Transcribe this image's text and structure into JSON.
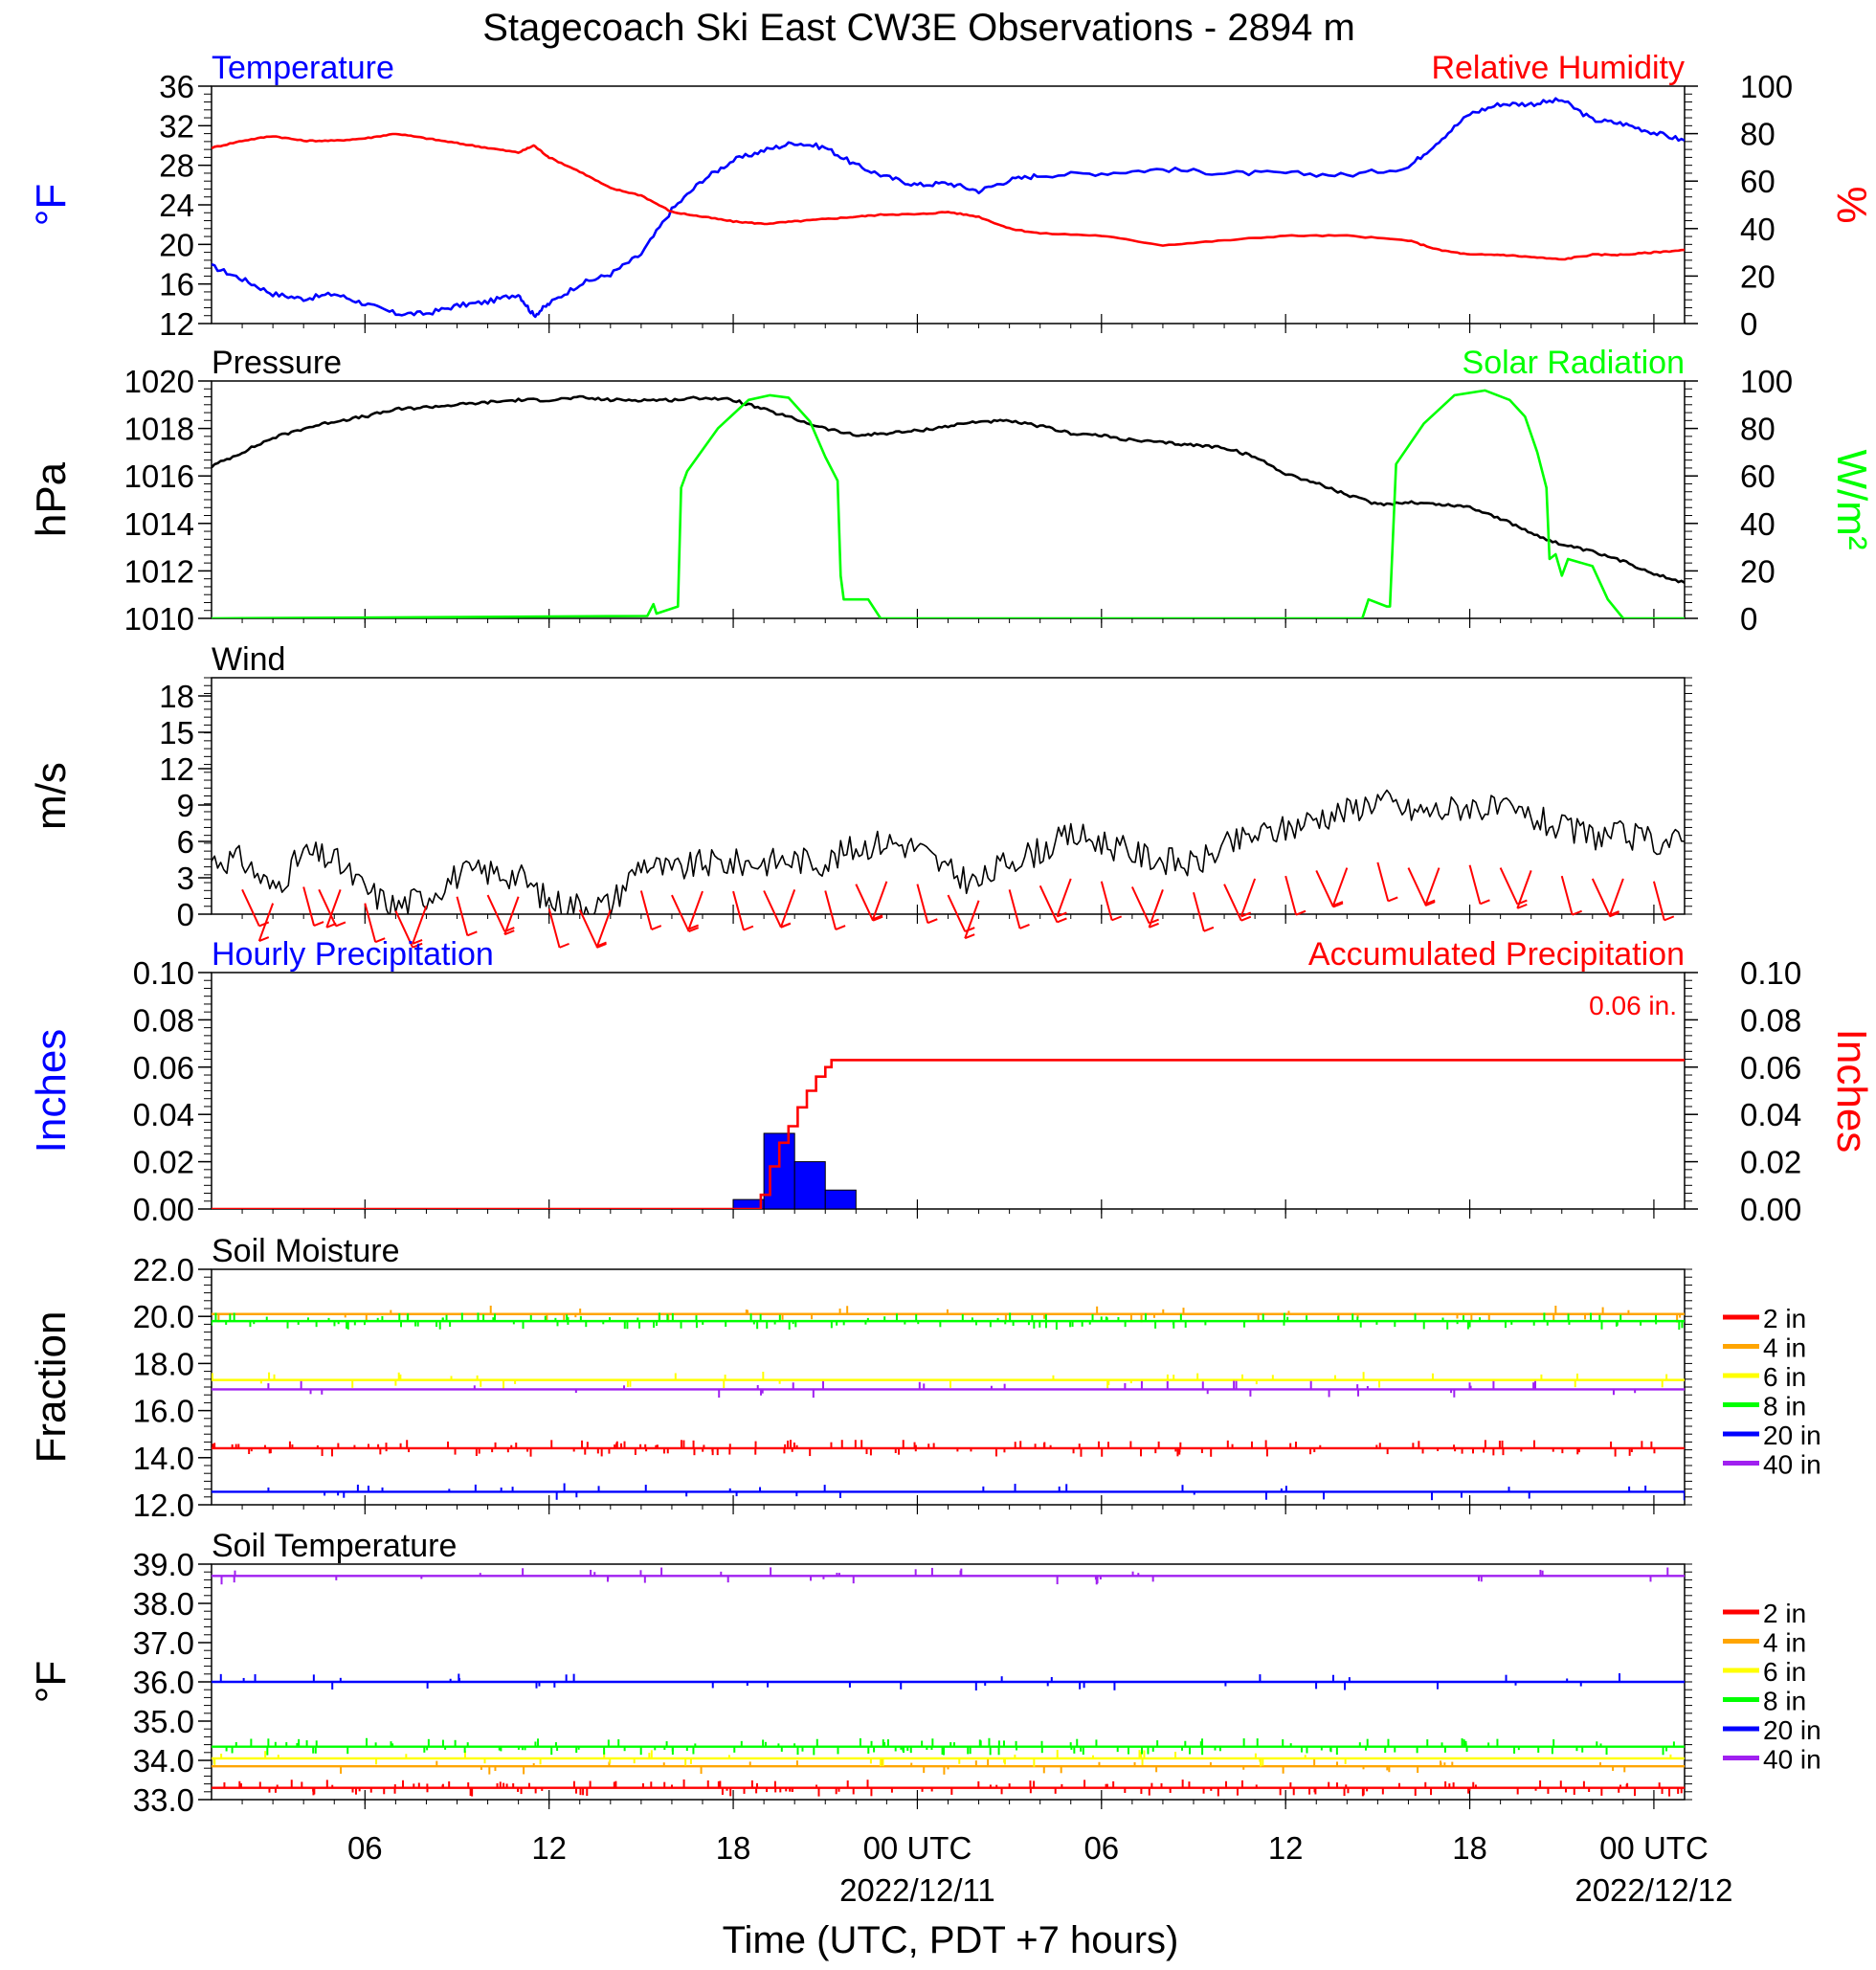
{
  "title": "Stagecoach Ski East CW3E Observations - 2894 m",
  "time_axis": {
    "ticks": [
      "06",
      "12",
      "18",
      "00 UTC",
      "06",
      "12",
      "18",
      "00 UTC"
    ],
    "tick_hours": [
      6,
      12,
      18,
      24,
      30,
      36,
      42,
      48
    ],
    "dates": [
      "2022/12/11",
      "2022/12/12"
    ],
    "date_hours": [
      24,
      48
    ],
    "xlabel": "Time (UTC, PDT +7 hours)",
    "range_hours": [
      1,
      49
    ]
  },
  "legend_depths": {
    "labels": [
      "2 in",
      "4 in",
      "6 in",
      "8 in",
      "20 in",
      "40 in"
    ],
    "colors": [
      "#ff0000",
      "#ffa500",
      "#ffff00",
      "#00ff00",
      "#0000ff",
      "#a020f0"
    ]
  },
  "chart_data": [
    {
      "type": "line",
      "left_label": "Temperature",
      "right_label": "Relative Humidity",
      "ylabel_left": "°F",
      "ylabel_right": "%",
      "ylim_left": [
        12,
        36
      ],
      "ylim_right": [
        0,
        100
      ],
      "yticks_left": [
        "12",
        "16",
        "20",
        "24",
        "28",
        "32",
        "36"
      ],
      "yticks_right": [
        "0",
        "20",
        "40",
        "60",
        "80",
        "100"
      ],
      "series": [
        {
          "axis": "left",
          "color": "#0000ff",
          "x": [
            1,
            2,
            3,
            4,
            5,
            6,
            7,
            8,
            9,
            10,
            11,
            11.5,
            12,
            13,
            14,
            15,
            16,
            17,
            18,
            19,
            20,
            21,
            22,
            23,
            24,
            25,
            26,
            27,
            28,
            30,
            32,
            34,
            36,
            38,
            40,
            41,
            42,
            43,
            44,
            45,
            46,
            47,
            48,
            49
          ],
          "y": [
            17.8,
            16.5,
            15.0,
            14.5,
            15.0,
            14.0,
            13.0,
            13.0,
            13.8,
            14.2,
            15.0,
            12.8,
            14.0,
            16.0,
            17.0,
            19.0,
            23.5,
            26.5,
            28.5,
            29.5,
            30.3,
            29.8,
            28.0,
            26.8,
            26.0,
            26.2,
            25.4,
            26.5,
            27.0,
            27.2,
            27.6,
            27.2,
            27.2,
            27.0,
            27.8,
            30.5,
            33.2,
            34.2,
            34.2,
            34.6,
            32.6,
            32.2,
            31.3,
            30.5
          ]
        },
        {
          "axis": "right",
          "color": "#ff0000",
          "x": [
            1,
            2,
            3,
            4,
            5,
            6,
            7,
            8,
            9,
            10,
            11,
            11.5,
            12,
            13,
            14,
            15,
            16,
            17,
            18,
            19,
            20,
            21,
            22,
            23,
            24,
            25,
            26,
            27,
            28,
            30,
            32,
            34,
            36,
            38,
            40,
            41,
            42,
            43,
            44,
            45,
            46,
            47,
            48,
            49
          ],
          "y": [
            74,
            77,
            79,
            77,
            77,
            78,
            80,
            78,
            76,
            74,
            72,
            75,
            70,
            64,
            57,
            54,
            47,
            45,
            43,
            42,
            43,
            44,
            45,
            46,
            46,
            47,
            45,
            40,
            38,
            37,
            33,
            35,
            37,
            37,
            35,
            31,
            29,
            29,
            28,
            27,
            29,
            29,
            30,
            31
          ]
        }
      ]
    },
    {
      "type": "line",
      "left_label": "Pressure",
      "right_label": "Solar Radiation",
      "ylabel_left": "hPa",
      "ylabel_right": "W/m²",
      "ylim_left": [
        1010,
        1020
      ],
      "ylim_right": [
        0,
        100
      ],
      "yticks_left": [
        "1010",
        "1012",
        "1014",
        "1016",
        "1018",
        "1020"
      ],
      "yticks_right": [
        "0",
        "20",
        "40",
        "60",
        "80",
        "100"
      ],
      "series": [
        {
          "axis": "left",
          "color": "#000000",
          "x": [
            1,
            2,
            3,
            4,
            5,
            6,
            7,
            8,
            9,
            10,
            11,
            12,
            13,
            14,
            15,
            16,
            17,
            18,
            19,
            20,
            21,
            22,
            23,
            24,
            25,
            26,
            27,
            28,
            29,
            30,
            31,
            32,
            33,
            34,
            35,
            36,
            37,
            38,
            39,
            40,
            41,
            42,
            43,
            44,
            45,
            46,
            47,
            48,
            49
          ],
          "y": [
            1016.4,
            1017.0,
            1017.6,
            1018.0,
            1018.3,
            1018.5,
            1018.8,
            1018.9,
            1019.0,
            1019.1,
            1019.2,
            1019.2,
            1019.3,
            1019.2,
            1019.2,
            1019.2,
            1019.3,
            1019.2,
            1018.8,
            1018.4,
            1018.0,
            1017.7,
            1017.8,
            1017.9,
            1018.1,
            1018.3,
            1018.3,
            1018.1,
            1017.8,
            1017.7,
            1017.5,
            1017.4,
            1017.3,
            1017.2,
            1016.8,
            1016.1,
            1015.7,
            1015.2,
            1014.8,
            1014.9,
            1014.8,
            1014.7,
            1014.2,
            1013.6,
            1013.1,
            1012.8,
            1012.4,
            1011.9,
            1011.5
          ]
        },
        {
          "axis": "right",
          "color": "#00ff00",
          "x": [
            1,
            15.2,
            15.4,
            15.5,
            16.2,
            16.3,
            16.5,
            17.5,
            18.5,
            19.2,
            19.8,
            20.5,
            21.0,
            21.4,
            21.5,
            21.6,
            22.0,
            22.4,
            22.8,
            24,
            38.5,
            38.7,
            39.3,
            39.4,
            39.6,
            40.5,
            41.5,
            42.5,
            43.3,
            43.8,
            44.2,
            44.5,
            44.6,
            44.8,
            45.0,
            45.2,
            46.0,
            46.5,
            47.0,
            48.0,
            49
          ],
          "y": [
            0,
            1,
            6,
            2,
            5,
            55,
            62,
            80,
            92,
            94,
            93,
            83,
            68,
            58,
            18,
            8,
            8,
            8,
            0,
            0,
            0,
            8,
            5,
            5,
            65,
            82,
            94,
            96,
            92,
            85,
            70,
            55,
            25,
            27,
            18,
            25,
            22,
            8,
            0,
            0,
            0
          ]
        }
      ]
    },
    {
      "type": "line",
      "left_label": "Wind",
      "ylabel_left": "m/s",
      "ylim_left": [
        0,
        19.5
      ],
      "yticks_left": [
        "0",
        "3",
        "6",
        "9",
        "12",
        "15",
        "18"
      ],
      "ytick_values": [
        0,
        3,
        6,
        9,
        12,
        15,
        18
      ],
      "series": [
        {
          "name": "speed",
          "color": "#000000",
          "x": [
            1,
            2,
            3,
            4,
            5,
            6,
            7,
            8,
            9,
            10,
            11,
            12,
            13,
            14,
            15,
            16,
            17,
            18,
            19,
            20,
            21,
            22,
            23,
            24,
            25,
            26,
            27,
            28,
            29,
            30,
            31,
            32,
            33,
            34,
            35,
            36,
            37,
            38,
            39,
            40,
            41,
            42,
            43,
            44,
            45,
            46,
            47,
            48,
            49
          ],
          "y": [
            4.5,
            4.5,
            2.0,
            5.0,
            4.5,
            2.0,
            0.6,
            1.5,
            3.2,
            3.5,
            3.2,
            1.0,
            0.8,
            0.8,
            4.3,
            3.5,
            4.2,
            4.2,
            4.3,
            4.5,
            4.3,
            5.5,
            6.0,
            5.5,
            3.5,
            2.5,
            4.5,
            5.2,
            6.5,
            6.0,
            5.0,
            4.5,
            4.0,
            5.5,
            6.5,
            7.0,
            8.0,
            8.5,
            9.5,
            8.5,
            8.5,
            9.0,
            8.5,
            8.0,
            7.0,
            6.5,
            6.5,
            6.0,
            6.0
          ]
        }
      ],
      "barbs_hours": [
        2,
        3,
        4,
        4.5,
        5.2,
        6,
        7,
        8,
        9,
        10,
        11,
        12,
        13,
        14,
        15,
        16,
        17,
        18,
        19,
        20,
        21,
        22,
        23,
        24,
        25,
        26,
        27,
        28,
        29,
        30,
        31,
        32,
        33,
        34,
        35,
        36,
        37,
        38,
        39,
        40,
        41,
        42,
        43,
        44,
        45,
        46,
        47,
        48
      ]
    },
    {
      "type": "bar",
      "left_label": "Hourly Precipitation",
      "right_label": "Accumulated Precipitation",
      "total": "0.06 in.",
      "ylabel_left": "Inches",
      "ylabel_right": "Inches",
      "ylim": [
        0,
        0.1
      ],
      "yticks_left": [
        "0.00",
        "0.02",
        "0.04",
        "0.06",
        "0.08",
        "0.10"
      ],
      "yticks_right": [
        "0.00",
        "0.02",
        "0.04",
        "0.06",
        "0.08",
        "0.10"
      ],
      "bars": {
        "start_hours": [
          18,
          19,
          20,
          21
        ],
        "values": [
          0.004,
          0.032,
          0.02,
          0.008
        ],
        "color": "#0000ff"
      },
      "accumulated": {
        "color": "#ff0000",
        "x": [
          1,
          18.6,
          18.9,
          19.2,
          19.5,
          19.8,
          20.1,
          20.4,
          20.7,
          21.0,
          21.2,
          21.4,
          49
        ],
        "y": [
          0,
          0,
          0.006,
          0.018,
          0.028,
          0.035,
          0.043,
          0.05,
          0.056,
          0.06,
          0.063,
          0.063,
          0.063
        ]
      }
    },
    {
      "type": "line",
      "left_label": "Soil Moisture",
      "ylabel_left": "Fraction",
      "ylim_left": [
        12.0,
        22.0
      ],
      "yticks_left": [
        "12.0",
        "14.0",
        "16.0",
        "18.0",
        "20.0",
        "22.0"
      ],
      "ytick_values": [
        12,
        14,
        16,
        18,
        20,
        22
      ],
      "series": [
        {
          "name": "2 in",
          "color": "#ff0000",
          "value": 14.4
        },
        {
          "name": "4 in",
          "color": "#ffa500",
          "value": 20.1
        },
        {
          "name": "6 in",
          "color": "#ffff00",
          "value": 17.3
        },
        {
          "name": "8 in",
          "color": "#00ff00",
          "value": 19.8
        },
        {
          "name": "20 in",
          "color": "#0000ff",
          "value": 12.55
        },
        {
          "name": "40 in",
          "color": "#a020f0",
          "value": 16.9
        }
      ]
    },
    {
      "type": "line",
      "left_label": "Soil Temperature",
      "ylabel_left": "°F",
      "ylim_left": [
        33.0,
        39.0
      ],
      "yticks_left": [
        "33.0",
        "34.0",
        "35.0",
        "36.0",
        "37.0",
        "38.0",
        "39.0"
      ],
      "ytick_values": [
        33,
        34,
        35,
        36,
        37,
        38,
        39
      ],
      "series": [
        {
          "name": "2 in",
          "color": "#ff0000",
          "value": 33.3
        },
        {
          "name": "4 in",
          "color": "#ffa500",
          "value": 33.85
        },
        {
          "name": "6 in",
          "color": "#ffff00",
          "value": 34.05
        },
        {
          "name": "8 in",
          "color": "#00ff00",
          "value": 34.35
        },
        {
          "name": "20 in",
          "color": "#0000ff",
          "value": 36.0
        },
        {
          "name": "40 in",
          "color": "#a020f0",
          "value": 38.7
        }
      ]
    }
  ]
}
